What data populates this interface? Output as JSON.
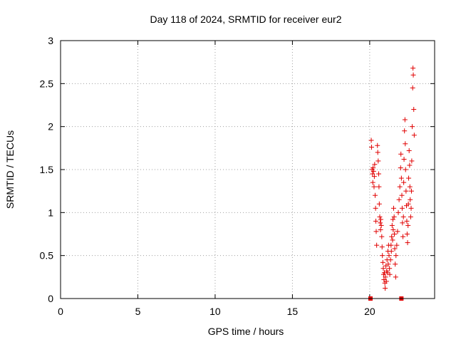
{
  "chart_data": {
    "type": "scatter",
    "title": "Day 118 of 2024, SRMTID for receiver eur2",
    "xlabel": "GPS time / hours",
    "ylabel": "SRMTID / TECUs",
    "xlim": [
      0,
      24.2
    ],
    "ylim": [
      0,
      3
    ],
    "xticks": [
      "0",
      "5",
      "10",
      "15",
      "20"
    ],
    "xtick_values": [
      0,
      5,
      10,
      15,
      20
    ],
    "yticks": [
      "0",
      "0.5",
      "1",
      "1.5",
      "2",
      "2.5",
      "3"
    ],
    "ytick_values": [
      0,
      0.5,
      1,
      1.5,
      2,
      2.5,
      3
    ],
    "grid": true,
    "marker": "plus",
    "color": "#e00000",
    "series": [
      {
        "name": "SRMTID",
        "points": [
          [
            20.1,
            1.84
          ],
          [
            20.12,
            1.76
          ],
          [
            20.15,
            1.5
          ],
          [
            20.18,
            1.45
          ],
          [
            20.2,
            1.35
          ],
          [
            20.22,
            1.52
          ],
          [
            20.25,
            1.48
          ],
          [
            20.28,
            1.3
          ],
          [
            20.3,
            1.42
          ],
          [
            20.32,
            1.56
          ],
          [
            20.35,
            1.2
          ],
          [
            20.38,
            1.05
          ],
          [
            20.4,
            0.9
          ],
          [
            20.42,
            0.78
          ],
          [
            20.45,
            0.62
          ],
          [
            20.5,
            1.78
          ],
          [
            20.52,
            1.7
          ],
          [
            20.55,
            1.6
          ],
          [
            20.58,
            1.45
          ],
          [
            20.6,
            1.3
          ],
          [
            20.62,
            1.1
          ],
          [
            20.65,
            0.95
          ],
          [
            20.68,
            0.88
          ],
          [
            20.7,
            0.8
          ],
          [
            20.72,
            0.92
          ],
          [
            20.75,
            0.85
          ],
          [
            20.78,
            0.72
          ],
          [
            20.8,
            0.6
          ],
          [
            20.82,
            0.5
          ],
          [
            20.85,
            0.42
          ],
          [
            20.88,
            0.35
          ],
          [
            20.9,
            0.28
          ],
          [
            20.92,
            0.22
          ],
          [
            20.95,
            0.3
          ],
          [
            20.98,
            0.18
          ],
          [
            21.0,
            0.12
          ],
          [
            21.02,
            0.25
          ],
          [
            21.05,
            0.38
          ],
          [
            21.08,
            0.2
          ],
          [
            21.1,
            0.32
          ],
          [
            21.12,
            0.45
          ],
          [
            21.15,
            0.3
          ],
          [
            21.18,
            0.55
          ],
          [
            21.2,
            0.4
          ],
          [
            21.22,
            0.62
          ],
          [
            21.25,
            0.5
          ],
          [
            21.28,
            0.35
          ],
          [
            21.3,
            0.28
          ],
          [
            21.35,
            0.45
          ],
          [
            21.38,
            0.62
          ],
          [
            21.4,
            0.55
          ],
          [
            21.42,
            0.72
          ],
          [
            21.45,
            0.85
          ],
          [
            21.48,
            0.68
          ],
          [
            21.5,
            0.92
          ],
          [
            21.52,
            0.8
          ],
          [
            21.55,
            1.05
          ],
          [
            21.58,
            0.95
          ],
          [
            21.6,
            0.75
          ],
          [
            21.62,
            0.58
          ],
          [
            21.65,
            0.4
          ],
          [
            21.68,
            0.25
          ],
          [
            21.7,
            0.5
          ],
          [
            21.75,
            0.62
          ],
          [
            21.8,
            0.78
          ],
          [
            21.85,
            1.0
          ],
          [
            21.9,
            1.15
          ],
          [
            21.95,
            1.3
          ],
          [
            22.0,
            1.52
          ],
          [
            22.02,
            1.68
          ],
          [
            22.05,
            1.4
          ],
          [
            22.08,
            1.2
          ],
          [
            22.1,
            1.05
          ],
          [
            22.12,
            0.88
          ],
          [
            22.15,
            0.72
          ],
          [
            22.18,
            0.95
          ],
          [
            22.2,
            1.35
          ],
          [
            22.22,
            1.62
          ],
          [
            22.25,
            1.95
          ],
          [
            22.28,
            2.08
          ],
          [
            22.3,
            1.8
          ],
          [
            22.32,
            1.5
          ],
          [
            22.35,
            1.25
          ],
          [
            22.38,
            1.08
          ],
          [
            22.4,
            0.9
          ],
          [
            22.42,
            0.75
          ],
          [
            22.45,
            0.65
          ],
          [
            22.48,
            0.85
          ],
          [
            22.5,
            1.1
          ],
          [
            22.52,
            1.4
          ],
          [
            22.55,
            1.72
          ],
          [
            22.58,
            1.55
          ],
          [
            22.6,
            1.3
          ],
          [
            22.62,
            1.15
          ],
          [
            22.65,
            0.95
          ],
          [
            22.68,
            1.05
          ],
          [
            22.7,
            1.25
          ],
          [
            22.72,
            1.6
          ],
          [
            22.75,
            2.0
          ],
          [
            22.78,
            2.45
          ],
          [
            22.8,
            2.68
          ],
          [
            22.82,
            2.6
          ],
          [
            22.85,
            2.2
          ],
          [
            22.88,
            1.9
          ]
        ]
      }
    ],
    "square_markers": [
      [
        20.05,
        0.0
      ],
      [
        22.05,
        0.0
      ]
    ]
  }
}
